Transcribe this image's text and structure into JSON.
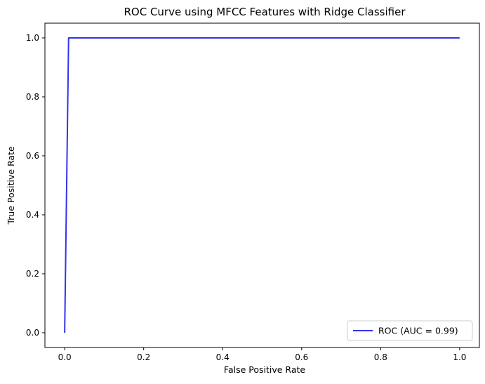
{
  "chart_data": {
    "type": "line",
    "title": "ROC Curve using MFCC Features with Ridge Classifier",
    "xlabel": "False Positive Rate",
    "ylabel": "True Positive Rate",
    "xlim": [
      -0.05,
      1.05
    ],
    "ylim": [
      -0.05,
      1.05
    ],
    "xticks": [
      0.0,
      0.2,
      0.4,
      0.6,
      0.8,
      1.0
    ],
    "yticks": [
      0.0,
      0.2,
      0.4,
      0.6,
      0.8,
      1.0
    ],
    "xtick_labels": [
      "0.0",
      "0.2",
      "0.4",
      "0.6",
      "0.8",
      "1.0"
    ],
    "ytick_labels": [
      "0.0",
      "0.2",
      "0.4",
      "0.6",
      "0.8",
      "1.0"
    ],
    "grid": false,
    "legend_position": "lower-right",
    "series": [
      {
        "name": "ROC (AUC = 0.99)",
        "color": "#3333ee",
        "x": [
          0.0,
          0.01,
          1.0
        ],
        "y": [
          0.0,
          1.0,
          1.0
        ]
      }
    ]
  }
}
